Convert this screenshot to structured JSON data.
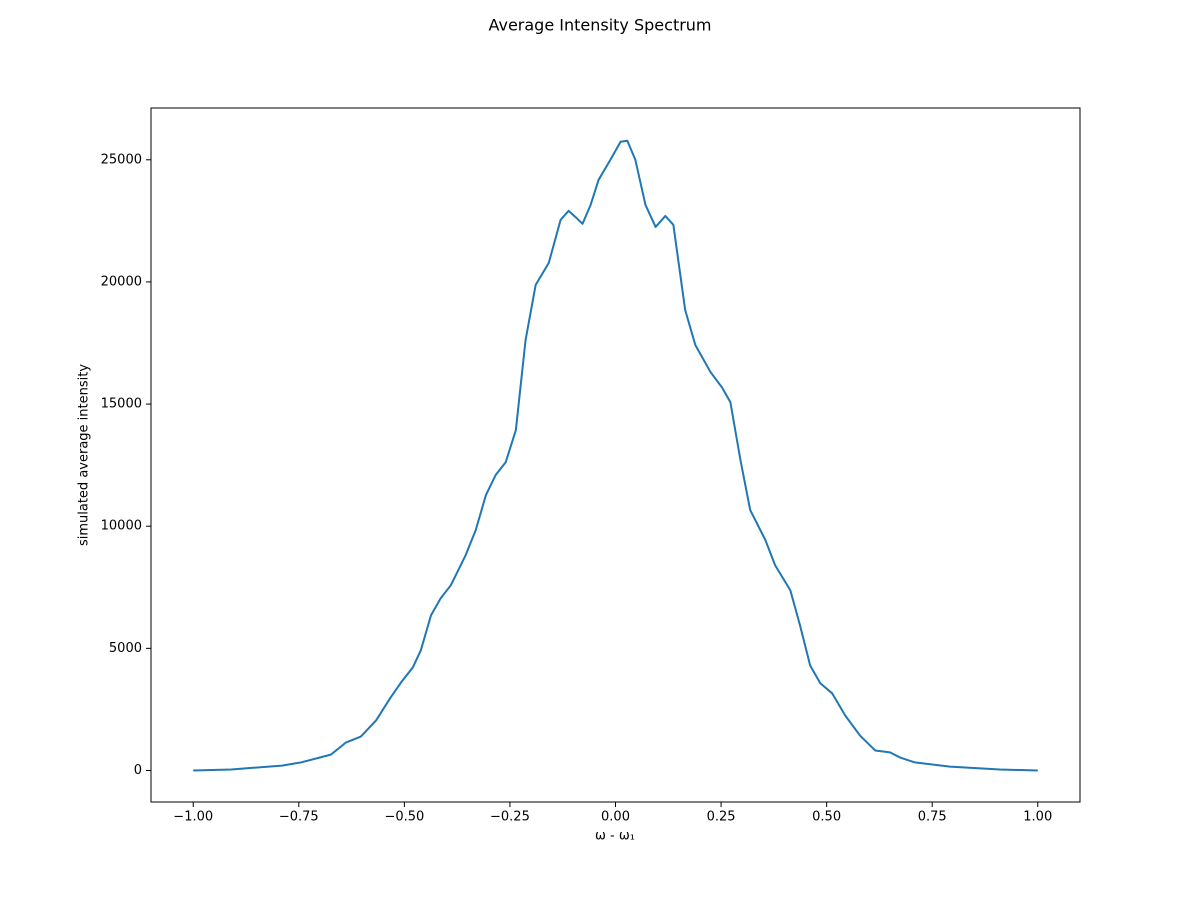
{
  "chart_data": {
    "type": "line",
    "title": "Average Intensity Spectrum",
    "xlabel": "ω - ω₁",
    "ylabel": "simulated average intensity",
    "x": [
      -1.0,
      -0.91,
      -0.79,
      -0.745,
      -0.674,
      -0.638,
      -0.603,
      -0.567,
      -0.532,
      -0.508,
      -0.48,
      -0.461,
      -0.437,
      -0.414,
      -0.39,
      -0.355,
      -0.331,
      -0.307,
      -0.284,
      -0.26,
      -0.236,
      -0.213,
      -0.189,
      -0.158,
      -0.13,
      -0.111,
      -0.095,
      -0.078,
      -0.059,
      -0.04,
      -0.012,
      0.012,
      0.028,
      0.047,
      0.071,
      0.095,
      0.118,
      0.137,
      0.165,
      0.189,
      0.225,
      0.253,
      0.272,
      0.296,
      0.319,
      0.355,
      0.378,
      0.414,
      0.437,
      0.461,
      0.485,
      0.513,
      0.544,
      0.579,
      0.615,
      0.65,
      0.674,
      0.709,
      0.792,
      0.91,
      1.0
    ],
    "values": [
      0,
      40,
      200,
      330,
      650,
      1150,
      1390,
      2050,
      3000,
      3600,
      4220,
      4920,
      6350,
      7050,
      7580,
      8810,
      9840,
      11270,
      12090,
      12620,
      13930,
      17620,
      19880,
      20780,
      22540,
      22910,
      22660,
      22380,
      23150,
      24180,
      25000,
      25740,
      25780,
      25000,
      23150,
      22250,
      22700,
      22340,
      18850,
      17420,
      16310,
      15660,
      15080,
      12700,
      10660,
      9430,
      8400,
      7380,
      5940,
      4300,
      3570,
      3160,
      2250,
      1430,
      820,
      740,
      530,
      330,
      160,
      40,
      0
    ],
    "color": "#1f77b4",
    "xlim": [
      -1.1,
      1.1
    ],
    "xticks": [
      {
        "value": -1.0,
        "label": "−1.00"
      },
      {
        "value": -0.75,
        "label": "−0.75"
      },
      {
        "value": -0.5,
        "label": "−0.50"
      },
      {
        "value": -0.25,
        "label": "−0.25"
      },
      {
        "value": 0,
        "label": "0.00"
      },
      {
        "value": 0.25,
        "label": "0.25"
      },
      {
        "value": 0.5,
        "label": "0.50"
      },
      {
        "value": 0.75,
        "label": "0.75"
      },
      {
        "value": 1.0,
        "label": "1.00"
      }
    ],
    "ylim": [
      -1290,
      27120
    ],
    "yticks": [
      0,
      5000,
      10000,
      15000,
      20000,
      25000
    ],
    "grid": false
  }
}
